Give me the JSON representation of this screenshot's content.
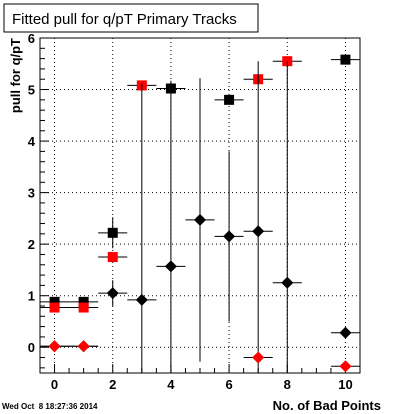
{
  "chart_data": {
    "type": "scatter",
    "title": "Fitted pull for q/pT Primary Tracks",
    "xlabel": "No. of Bad Points",
    "ylabel": "pull for q/pT",
    "xlim": [
      -0.5,
      10.5
    ],
    "ylim": [
      -0.5,
      6
    ],
    "xticks": [
      0,
      2,
      4,
      6,
      8,
      10
    ],
    "yticks": [
      0,
      1,
      2,
      3,
      4,
      5,
      6
    ],
    "grid": true,
    "timestamp": "Wed Oct  8 18:27:36 2014",
    "series": [
      {
        "marker": "square",
        "color": "#000000",
        "points": [
          {
            "x": 0,
            "y": 0.88,
            "xerr": 0.5,
            "yerr": 0.06
          },
          {
            "x": 1,
            "y": 0.88,
            "xerr": 0.5,
            "yerr": 0.06
          },
          {
            "x": 2,
            "y": 2.22,
            "xerr": 0.5,
            "yerr": 0.3
          },
          {
            "x": 4,
            "y": 5.02,
            "xerr": 0.5,
            "yerr": 0
          },
          {
            "x": 6,
            "y": 4.8,
            "xerr": 0.5,
            "yerr": 0
          },
          {
            "x": 10,
            "y": 5.58,
            "xerr": 0.5,
            "yerr": 0
          }
        ]
      },
      {
        "marker": "square",
        "color": "#ff0000",
        "points": [
          {
            "x": 0,
            "y": 0.77,
            "xerr": 0.5,
            "yerr": 0
          },
          {
            "x": 1,
            "y": 0.77,
            "xerr": 0.5,
            "yerr": 0
          },
          {
            "x": 2,
            "y": 1.75,
            "xerr": 0.5,
            "yerr": 0
          },
          {
            "x": 3,
            "y": 5.08,
            "xerr": 0.5,
            "yerr": 0
          },
          {
            "x": 7,
            "y": 5.2,
            "xerr": 0.5,
            "yerr": 0
          },
          {
            "x": 8,
            "y": 5.55,
            "xerr": 0.5,
            "yerr": 0
          }
        ]
      },
      {
        "marker": "diamond",
        "color": "#000000",
        "points": [
          {
            "x": 0,
            "y": 0.02,
            "xerr": 0.5,
            "yerr": 0
          },
          {
            "x": 1,
            "y": 0.02,
            "xerr": 0.5,
            "yerr": 0
          },
          {
            "x": 2,
            "y": 1.05,
            "xerr": 0.5,
            "yerr": 0.25
          },
          {
            "x": 3,
            "y": 0.92,
            "xerr": 0.5,
            "yerr": 4.2
          },
          {
            "x": 4,
            "y": 1.57,
            "xerr": 0.5,
            "yerr": 3.6
          },
          {
            "x": 5,
            "y": 2.47,
            "xerr": 0.5,
            "yerr": 2.75
          },
          {
            "x": 6,
            "y": 2.15,
            "xerr": 0.5,
            "yerr": 1.65
          },
          {
            "x": 7,
            "y": 2.25,
            "xerr": 0.5,
            "yerr": 3.3
          },
          {
            "x": 8,
            "y": 1.25,
            "xerr": 0.5,
            "yerr": 4.3
          },
          {
            "x": 10,
            "y": 0.28,
            "xerr": 0.5,
            "yerr": 0
          }
        ]
      },
      {
        "marker": "diamond",
        "color": "#ff0000",
        "points": [
          {
            "x": 0,
            "y": 0.02,
            "xerr": 0.5,
            "yerr": 0
          },
          {
            "x": 1,
            "y": 0.02,
            "xerr": 0.5,
            "yerr": 0
          },
          {
            "x": 7,
            "y": -0.2,
            "xerr": 0.5,
            "yerr": 0
          },
          {
            "x": 10,
            "y": -0.37,
            "xerr": 0.5,
            "yerr": 0
          }
        ]
      }
    ]
  }
}
